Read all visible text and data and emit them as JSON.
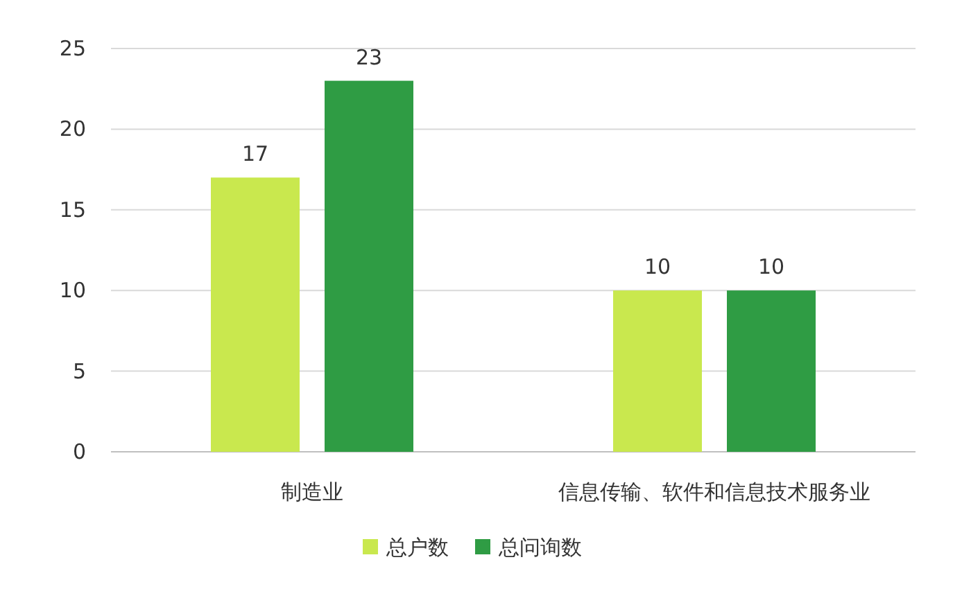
{
  "chart_data": {
    "type": "bar",
    "categories": [
      "制造业",
      "信息传输、软件和信息技术服务业"
    ],
    "series": [
      {
        "name": "总户数",
        "color": "#c9e84e",
        "values": [
          17,
          10
        ]
      },
      {
        "name": "总问询数",
        "color": "#2f9c44",
        "values": [
          23,
          10
        ]
      }
    ],
    "ylim": [
      0,
      25
    ],
    "yticks": [
      0,
      5,
      10,
      15,
      20,
      25
    ],
    "grid": "y",
    "legend": "bottom",
    "data_labels": true
  }
}
